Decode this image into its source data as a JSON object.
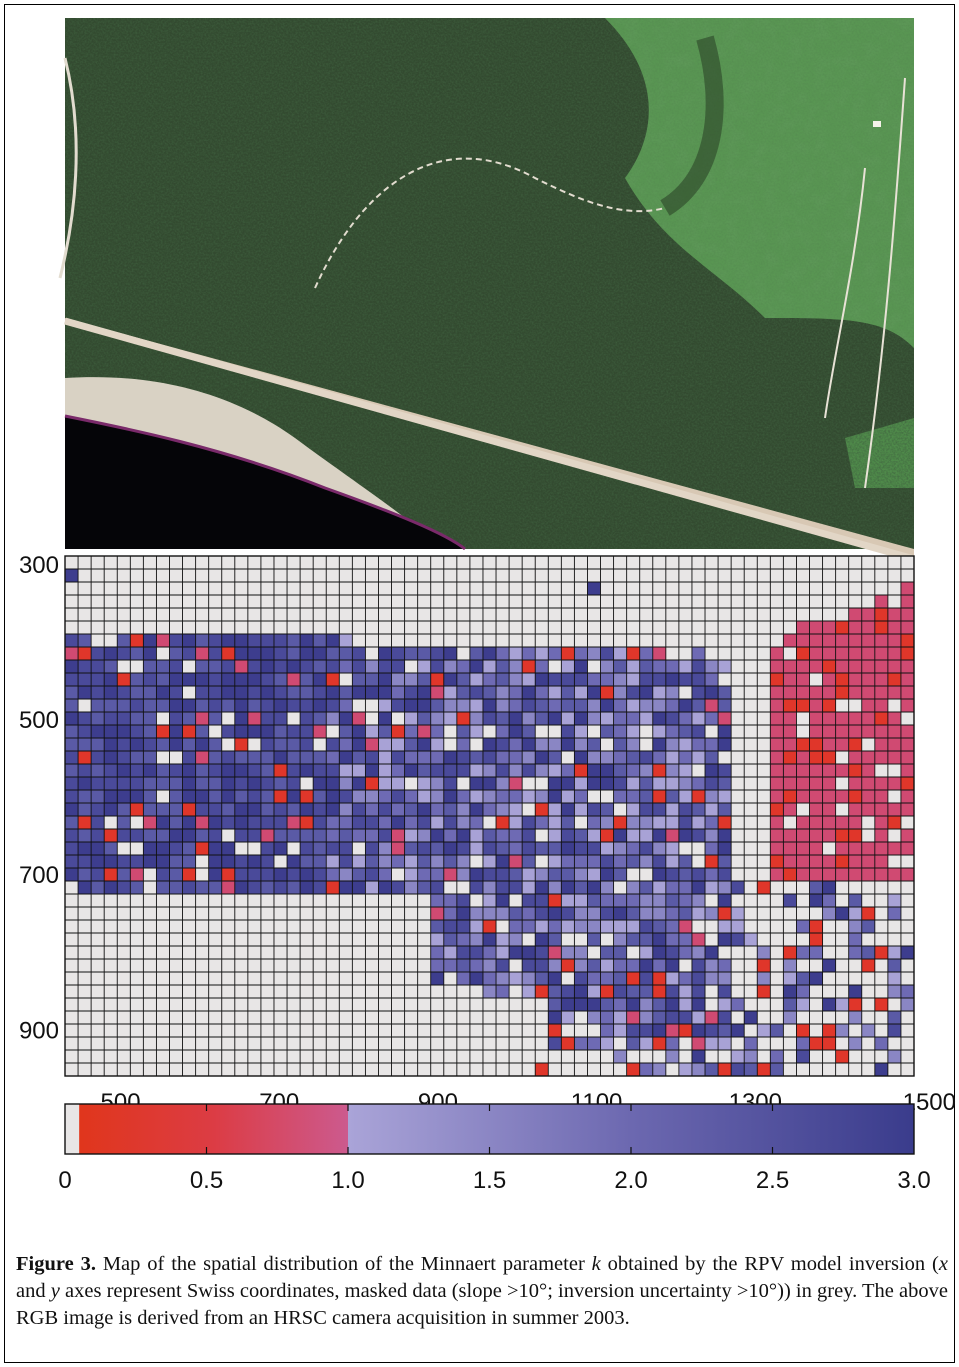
{
  "figure": {
    "label": "Figure 3.",
    "caption_parts": [
      {
        "t": "Map of the spatial distribution of the Minnaert parameter ",
        "i": false
      },
      {
        "t": "k",
        "i": true
      },
      {
        "t": " obtained by the RPV model inversion (",
        "i": false
      },
      {
        "t": "x",
        "i": true
      },
      {
        "t": " and ",
        "i": false
      },
      {
        "t": "y",
        "i": true
      },
      {
        "t": " axes represent Swiss coordinates, masked data (slope >10°; inversion uncertainty >10°)) in grey. The above RGB image is derived from an HRSC camera acquisition in summer 2003.",
        "i": false
      }
    ]
  },
  "colors": {
    "grey": "#e8e6e6",
    "red": "#e0362a",
    "pink": "#d04a72",
    "light_purple": "#a8a2d6",
    "dark_purple": "#3d3d8e",
    "forest": "#2c3c28",
    "meadow": "#4e8a48",
    "road": "#d8c8b4",
    "water": "#050508"
  },
  "chart_data": [
    {
      "type": "heatmap",
      "title": "",
      "x_ticks": [
        500,
        700,
        900,
        1100,
        1300,
        1500
      ],
      "y_ticks": [
        300,
        500,
        700,
        900
      ],
      "x_tick_labels": [
        "500",
        "700",
        "900",
        "1100",
        "1300",
        "1500"
      ],
      "y_tick_labels": [
        "300",
        "500",
        "700",
        "900"
      ],
      "xlim": [
        430,
        1500
      ],
      "ylim": [
        290,
        960
      ],
      "y_inverted": true,
      "grid": true,
      "cell_size": 17,
      "masked_value_color": "grey",
      "value_range": [
        0,
        3.0
      ]
    },
    {
      "type": "colorbar",
      "ticks": [
        0,
        0.5,
        1.0,
        1.5,
        2.0,
        2.5,
        3.0
      ],
      "tick_labels": [
        "0",
        "0.5",
        "1.0",
        "1.5",
        "2.0",
        "2.5",
        "3.0"
      ],
      "range": [
        0,
        3.0
      ],
      "masked_segment": [
        0,
        0.05
      ]
    }
  ]
}
